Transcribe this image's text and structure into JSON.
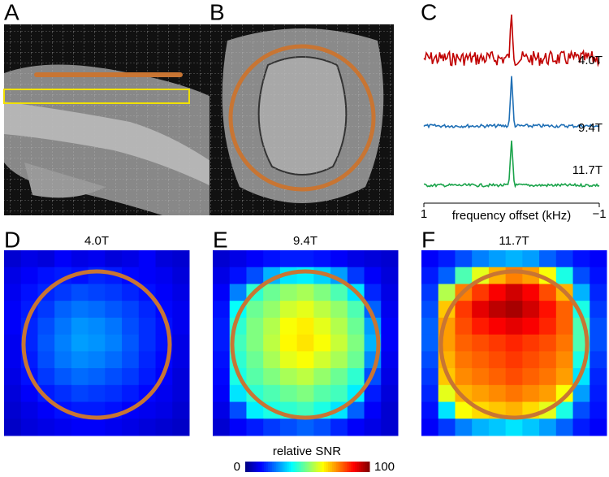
{
  "panel_labels": [
    "A",
    "B",
    "C",
    "D",
    "E",
    "F"
  ],
  "spectra": {
    "xlabel": "frequency offset (kHz)",
    "xlim": [
      1,
      -1
    ],
    "xticks": [
      1,
      {
        "value": -1,
        "label": "−1"
      }
    ],
    "series": [
      {
        "name": "4.0T",
        "color": "#c00000"
      },
      {
        "name": "9.4T",
        "color": "#1f6fb5"
      },
      {
        "name": "11.7T",
        "color": "#1aa34a"
      }
    ]
  },
  "heatmaps": [
    {
      "title": "4.0T",
      "color": "#c00000",
      "values": [
        [
          8,
          10,
          9,
          12,
          10,
          11,
          9,
          10,
          12,
          9,
          8
        ],
        [
          10,
          12,
          14,
          15,
          14,
          16,
          15,
          13,
          12,
          11,
          9
        ],
        [
          11,
          14,
          16,
          18,
          20,
          19,
          18,
          16,
          14,
          12,
          10
        ],
        [
          12,
          15,
          18,
          22,
          24,
          23,
          21,
          19,
          16,
          13,
          11
        ],
        [
          12,
          16,
          20,
          24,
          27,
          26,
          24,
          20,
          17,
          14,
          11
        ],
        [
          11,
          16,
          21,
          25,
          28,
          27,
          25,
          21,
          17,
          14,
          10
        ],
        [
          11,
          15,
          20,
          24,
          26,
          25,
          23,
          20,
          16,
          13,
          10
        ],
        [
          10,
          14,
          18,
          21,
          23,
          22,
          20,
          18,
          15,
          12,
          9
        ],
        [
          9,
          12,
          15,
          17,
          19,
          18,
          17,
          15,
          13,
          11,
          9
        ],
        [
          8,
          10,
          12,
          14,
          15,
          15,
          14,
          12,
          11,
          10,
          8
        ],
        [
          7,
          9,
          10,
          11,
          12,
          12,
          11,
          10,
          9,
          8,
          7
        ]
      ]
    },
    {
      "title": "9.4T",
      "color": "#1f6fb5",
      "values": [
        [
          8,
          10,
          12,
          14,
          15,
          15,
          14,
          12,
          10,
          9,
          8
        ],
        [
          10,
          14,
          20,
          30,
          35,
          36,
          33,
          28,
          18,
          12,
          9
        ],
        [
          12,
          25,
          42,
          48,
          52,
          54,
          50,
          45,
          35,
          16,
          10
        ],
        [
          14,
          38,
          48,
          52,
          58,
          60,
          56,
          52,
          45,
          22,
          11
        ],
        [
          15,
          42,
          50,
          55,
          62,
          64,
          60,
          55,
          48,
          28,
          12
        ],
        [
          15,
          44,
          50,
          56,
          63,
          65,
          62,
          57,
          50,
          30,
          12
        ],
        [
          14,
          42,
          48,
          54,
          60,
          62,
          58,
          54,
          48,
          26,
          11
        ],
        [
          13,
          40,
          46,
          50,
          54,
          56,
          52,
          48,
          42,
          20,
          10
        ],
        [
          12,
          35,
          42,
          45,
          48,
          50,
          46,
          44,
          36,
          15,
          9
        ],
        [
          10,
          20,
          36,
          40,
          42,
          44,
          40,
          35,
          22,
          12,
          8
        ],
        [
          8,
          12,
          15,
          18,
          20,
          22,
          20,
          16,
          12,
          10,
          8
        ]
      ]
    },
    {
      "title": "11.7T",
      "color": "#1aa34a",
      "values": [
        [
          12,
          15,
          20,
          25,
          28,
          30,
          28,
          22,
          18,
          14,
          12
        ],
        [
          15,
          22,
          45,
          60,
          70,
          75,
          72,
          62,
          40,
          20,
          14
        ],
        [
          18,
          55,
          75,
          82,
          88,
          92,
          88,
          80,
          70,
          30,
          16
        ],
        [
          20,
          68,
          82,
          90,
          94,
          96,
          92,
          86,
          78,
          40,
          18
        ],
        [
          22,
          72,
          80,
          85,
          88,
          90,
          88,
          84,
          78,
          45,
          20
        ],
        [
          22,
          72,
          78,
          80,
          82,
          84,
          82,
          80,
          76,
          45,
          20
        ],
        [
          20,
          70,
          76,
          78,
          80,
          82,
          80,
          78,
          74,
          40,
          18
        ],
        [
          18,
          68,
          74,
          76,
          78,
          80,
          78,
          76,
          72,
          35,
          16
        ],
        [
          16,
          60,
          70,
          72,
          74,
          76,
          74,
          72,
          62,
          28,
          15
        ],
        [
          14,
          35,
          62,
          66,
          68,
          70,
          66,
          60,
          40,
          20,
          14
        ],
        [
          12,
          18,
          25,
          30,
          32,
          35,
          32,
          28,
          22,
          15,
          12
        ]
      ]
    }
  ],
  "colorbar": {
    "label": "relative SNR",
    "lim": [
      0,
      100
    ],
    "ticks": [
      0,
      100
    ]
  }
}
